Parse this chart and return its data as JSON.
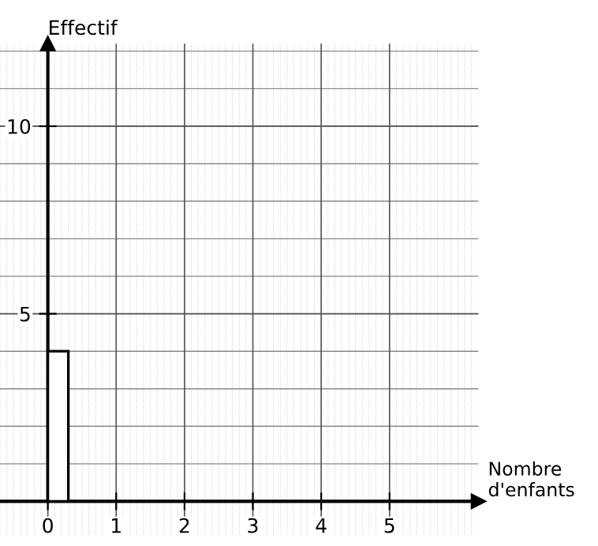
{
  "chart_data": {
    "type": "histogram",
    "xlabel": "Nombre\nd'enfants",
    "ylabel": "Effectif",
    "bins": [
      0,
      0.3
    ],
    "values": [
      4
    ],
    "color": "#ffffff",
    "xlim": [
      -0.7,
      6.3
    ],
    "ylim": [
      -0.9,
      12.2
    ],
    "xticks": [
      0,
      1,
      2,
      3,
      4,
      5
    ],
    "yticks": [
      5,
      10
    ],
    "grid": true
  }
}
